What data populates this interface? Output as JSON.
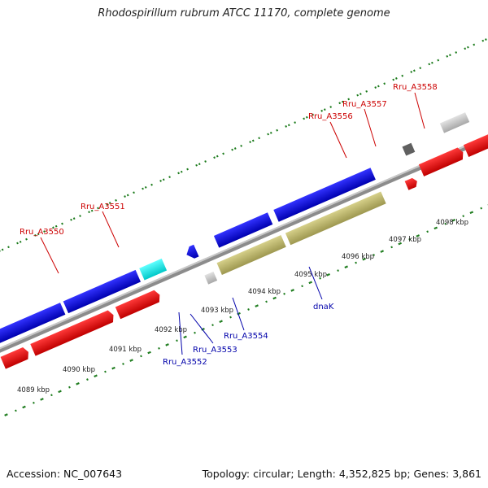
{
  "title": "Rhodospirillum rubrum ATCC 11170, complete genome",
  "footer": {
    "accession": "Accession: NC_007643",
    "summary": "Topology: circular; Length: 4,352,825 bp; Genes: 3,861"
  },
  "colors": {
    "forward_cds": "#ff0000",
    "reverse_cds": "#0000ff",
    "highlight_cds": "#00ffff",
    "khaki_cds": "#bdb76b",
    "grey_feature": "#c0c0c0",
    "dark_feature": "#606060",
    "backbone": "#888888",
    "ticks": "#1a7a1a",
    "label_top": "#cc0000",
    "label_bottom": "#0000aa"
  },
  "scale_labels": [
    "4089 kbp",
    "4090 kbp",
    "4091 kbp",
    "4092 kbp",
    "4093 kbp",
    "4094 kbp",
    "4095 kbp",
    "4096 kbp",
    "4097 kbp",
    "4098 kbp"
  ],
  "gene_labels_top": [
    "Rru_A3550",
    "Rru_A3551",
    "Rru_A3556",
    "Rru_A3557",
    "Rru_A3558"
  ],
  "gene_labels_bottom": [
    "Rru_A3552",
    "Rru_A3553",
    "Rru_A3554",
    "dnaK"
  ]
}
